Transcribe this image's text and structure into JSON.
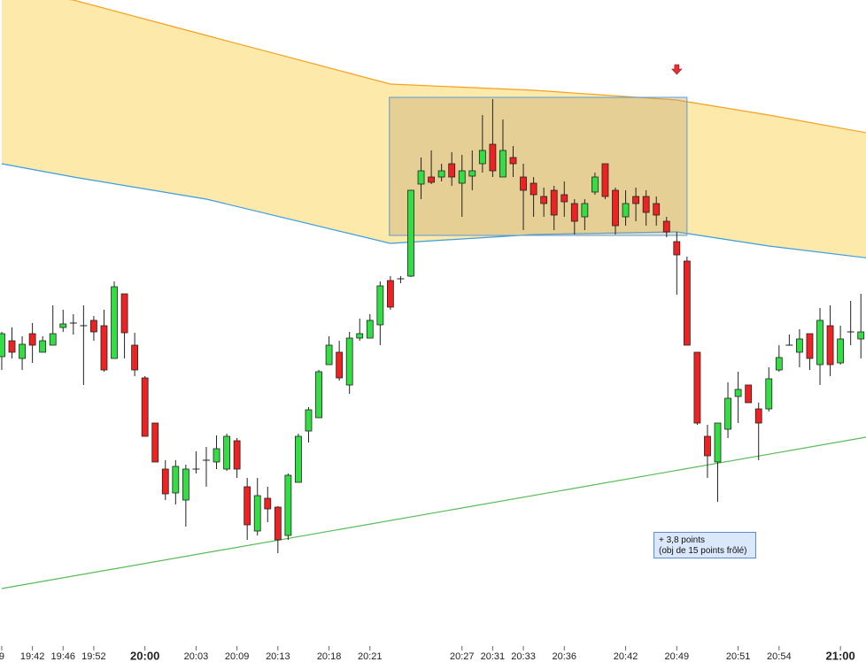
{
  "chart_data": {
    "type": "candlestick",
    "categories": [
      "9",
      null,
      null,
      "19:42",
      null,
      null,
      "19:46",
      null,
      null,
      "19:52",
      null,
      null,
      null,
      null,
      "20:00",
      null,
      null,
      null,
      null,
      "20:03",
      null,
      null,
      null,
      "20:09",
      null,
      null,
      null,
      "20:13",
      null,
      null,
      null,
      null,
      "20:18",
      null,
      null,
      null,
      "20:21",
      null,
      null,
      null,
      null,
      null,
      null,
      null,
      null,
      "20:27",
      null,
      null,
      "20:31",
      null,
      null,
      "20:33",
      null,
      null,
      null,
      "20:36",
      null,
      null,
      null,
      null,
      null,
      "20:42",
      null,
      null,
      null,
      null,
      "20:49",
      null,
      null,
      null,
      null,
      null,
      "20:51",
      null,
      null,
      null,
      "20:54",
      null,
      null,
      null,
      null,
      null,
      "21:00",
      null,
      null
    ],
    "emphasized_categories": [
      14,
      82
    ],
    "open": [
      345,
      363,
      343,
      371,
      350,
      358,
      378,
      383,
      380,
      386,
      380,
      343,
      416,
      358,
      321,
      270,
      218,
      191,
      183,
      218,
      228,
      226,
      218,
      250,
      198,
      148,
      185,
      175,
      143,
      203,
      261,
      276,
      336,
      350,
      313,
      366,
      366,
      381,
      431,
      433,
      436,
      540,
      548,
      548,
      563,
      541,
      549,
      563,
      585,
      548,
      570,
      548,
      541,
      526,
      533,
      528,
      518,
      503,
      531,
      563,
      533,
      503,
      526,
      526,
      518,
      498,
      475,
      453,
      350,
      255,
      226,
      263,
      300,
      313,
      286,
      286,
      330,
      358,
      350,
      371,
      336,
      380,
      338,
      373,
      365
    ],
    "high": [
      373,
      378,
      368,
      383,
      368,
      403,
      398,
      393,
      403,
      391,
      398,
      430,
      416,
      372,
      323,
      270,
      228,
      228,
      223,
      238,
      243,
      256,
      258,
      253,
      208,
      208,
      198,
      176,
      213,
      258,
      288,
      330,
      368,
      363,
      373,
      388,
      393,
      430,
      436,
      436,
      533,
      570,
      578,
      563,
      576,
      573,
      578,
      618,
      636,
      613,
      583,
      563,
      548,
      536,
      538,
      543,
      523,
      523,
      553,
      563,
      536,
      533,
      536,
      533,
      526,
      503,
      486,
      458,
      350,
      268,
      270,
      316,
      328,
      313,
      293,
      333,
      358,
      370,
      376,
      371,
      400,
      403,
      380,
      408,
      416
    ],
    "low": [
      330,
      343,
      330,
      338,
      350,
      358,
      373,
      370,
      313,
      363,
      328,
      343,
      343,
      323,
      255,
      226,
      183,
      178,
      153,
      213,
      198,
      218,
      216,
      208,
      138,
      143,
      158,
      123,
      138,
      203,
      248,
      276,
      336,
      318,
      303,
      363,
      366,
      358,
      398,
      428,
      435,
      523,
      540,
      543,
      538,
      503,
      533,
      553,
      548,
      548,
      548,
      488,
      503,
      503,
      488,
      503,
      483,
      488,
      528,
      523,
      483,
      493,
      498,
      493,
      493,
      480,
      415,
      358,
      268,
      208,
      181,
      253,
      270,
      293,
      228,
      283,
      328,
      358,
      333,
      330,
      313,
      323,
      336,
      358,
      343
    ],
    "close": [
      371,
      350,
      359,
      358,
      363,
      371,
      382,
      383,
      380,
      373,
      330,
      424,
      372,
      330,
      255,
      226,
      190,
      221,
      218,
      218,
      228,
      241,
      255,
      218,
      155,
      188,
      173,
      138,
      211,
      255,
      285,
      328,
      358,
      321,
      366,
      371,
      386,
      425,
      401,
      433,
      533,
      555,
      542,
      555,
      548,
      555,
      555,
      578,
      555,
      578,
      563,
      533,
      528,
      518,
      505,
      520,
      498,
      518,
      548,
      526,
      493,
      518,
      518,
      508,
      505,
      486,
      460,
      358,
      270,
      233,
      270,
      298,
      308,
      293,
      270,
      320,
      344,
      358,
      365,
      343,
      386,
      336,
      365,
      373,
      373
    ],
    "up_color": "#33dd44",
    "down_color": "#ee2222",
    "xlim": [
      -0.17,
      84.5
    ],
    "ylim": [
      0,
      748
    ],
    "band": {
      "x": [
        0,
        7,
        20,
        38,
        52,
        66,
        75,
        85
      ],
      "upper": [
        756,
        748,
        708,
        653,
        646,
        635,
        618,
        597
      ],
      "lower": [
        563,
        548,
        523,
        473,
        483,
        486,
        470,
        456
      ],
      "fill": "#fde9aa",
      "upper_color": "#f5a020",
      "lower_color": "#3a9ee0"
    },
    "trend": {
      "x": [
        0,
        85
      ],
      "values": [
        83,
        255
      ],
      "color": "#55bb55"
    },
    "zone": {
      "x": [
        37.9,
        67
      ],
      "y": [
        482,
        638
      ],
      "fill": "#b8a070",
      "stroke": "#5b9bd5"
    },
    "arrow": {
      "x": 66,
      "y": 672,
      "color": "#e53030"
    },
    "annotation": {
      "lines": [
        "+ 3,8 points",
        "(obj de 15 points frôlé)"
      ]
    }
  }
}
